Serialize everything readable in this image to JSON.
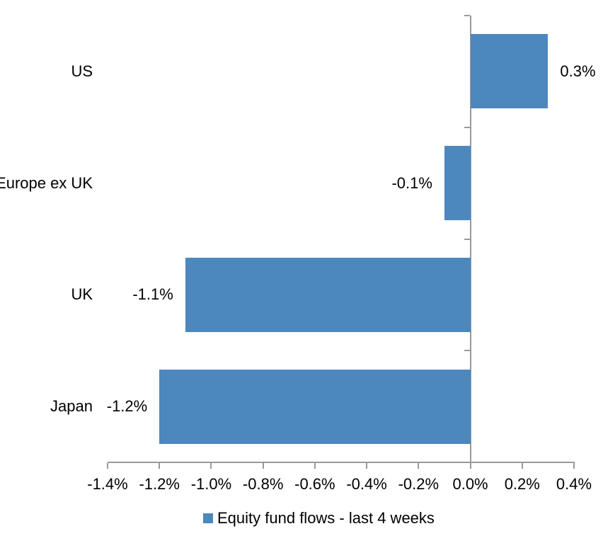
{
  "chart_data": {
    "type": "bar",
    "orientation": "horizontal",
    "title": "",
    "categories": [
      "US",
      "Europe ex UK",
      "UK",
      "Japan"
    ],
    "values": [
      0.3,
      -0.1,
      -1.1,
      -1.2
    ],
    "value_labels": [
      "0.3%",
      "-0.1%",
      "-1.1%",
      "-1.2%"
    ],
    "x_tick_values": [
      -1.4,
      -1.2,
      -1.0,
      -0.8,
      -0.6,
      -0.4,
      -0.2,
      0.0,
      0.2,
      0.4
    ],
    "x_tick_labels": [
      "-1.4%",
      "-1.2%",
      "-1.0%",
      "-0.8%",
      "-0.6%",
      "-0.4%",
      "-0.2%",
      "0.0%",
      "0.2%",
      "0.4%"
    ],
    "xlim": [
      -1.4,
      0.4
    ],
    "grid": false,
    "legend": {
      "label": "Equity fund flows - last 4 weeks",
      "position": "bottom"
    },
    "colors": {
      "bar": "#4C87BE",
      "axis": "#9A9A9A",
      "text": "#000000",
      "background": "#FFFFFF"
    }
  }
}
